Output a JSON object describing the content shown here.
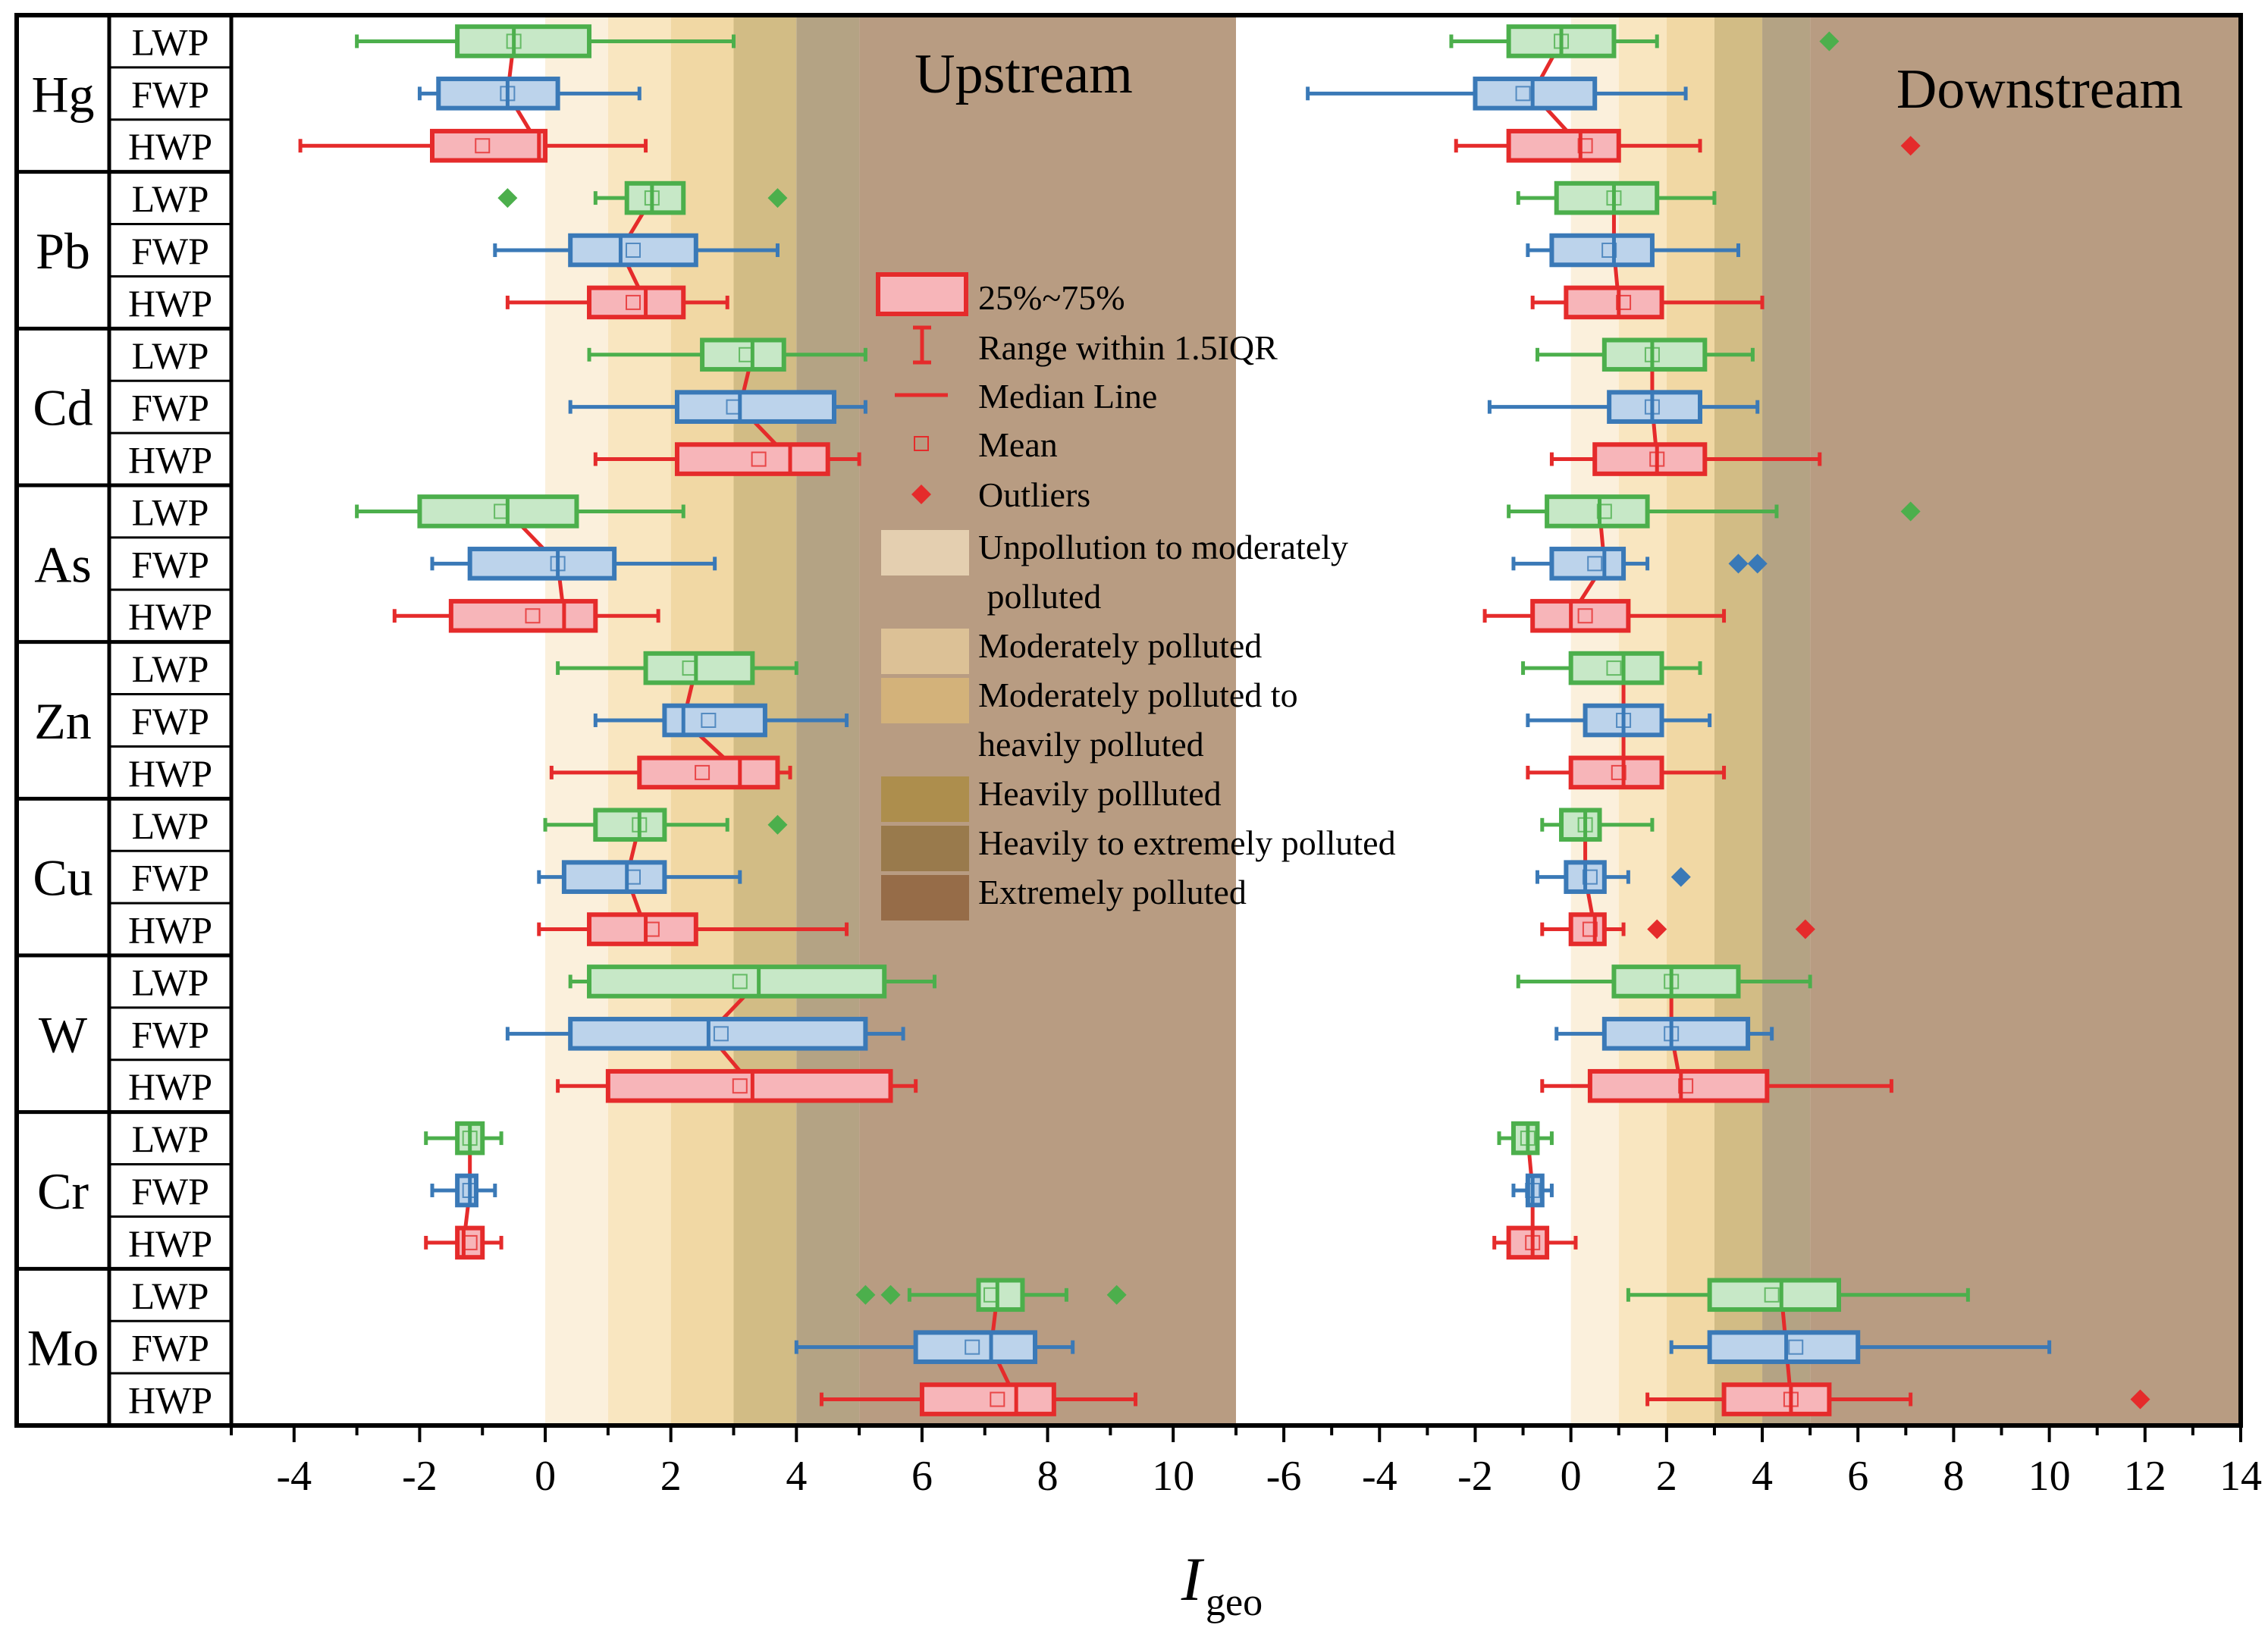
{
  "chart_data": {
    "type": "box",
    "xlabel_main": "I",
    "xlabel_sub": "geo",
    "panels": [
      {
        "key": "up",
        "label": "Upstream",
        "xlim": [
          -5,
          11
        ],
        "ticks": [
          "-4",
          "-2",
          "0",
          "2",
          "4",
          "6",
          "8",
          "10"
        ],
        "tick_values": [
          -4,
          -2,
          0,
          2,
          4,
          6,
          8,
          10
        ]
      },
      {
        "key": "down",
        "label": "Downstream",
        "xlim": [
          -7,
          14
        ],
        "ticks": [
          "-6",
          "-4",
          "-2",
          "0",
          "2",
          "4",
          "6",
          "8",
          "10",
          "12",
          "14"
        ],
        "tick_values": [
          -6,
          -4,
          -2,
          0,
          2,
          4,
          6,
          8,
          10,
          12,
          14
        ]
      }
    ],
    "pollution_bands": [
      {
        "from": 0,
        "to": 1,
        "color": "#fbf0dc"
      },
      {
        "from": 1,
        "to": 2,
        "color": "#f9e6c0"
      },
      {
        "from": 2,
        "to": 3,
        "color": "#f1d8a4"
      },
      {
        "from": 3,
        "to": 4,
        "color": "#d2bc85"
      },
      {
        "from": 4,
        "to": 5,
        "color": "#b4a384"
      },
      {
        "from": 5,
        "to": 99,
        "color": "#b89c82"
      }
    ],
    "series": [
      {
        "name": "LWP",
        "color": "#4caf4c",
        "fill": "#c7e8c7"
      },
      {
        "name": "FWP",
        "color": "#3a79b7",
        "fill": "#bcd3eb"
      },
      {
        "name": "HWP",
        "color": "#e52b2b",
        "fill": "#f7b5b9"
      }
    ],
    "elements": [
      {
        "name": "Hg",
        "groups": [
          {
            "series": "LWP",
            "up": {
              "whisker": [
                -3.0,
                3.0
              ],
              "q1": -1.4,
              "median": -0.5,
              "q3": 0.7,
              "mean": -0.5,
              "outliers": []
            },
            "down": {
              "whisker": [
                -2.5,
                1.8
              ],
              "q1": -1.3,
              "median": -0.2,
              "q3": 0.9,
              "mean": -0.2,
              "outliers": [
                5.4
              ]
            }
          },
          {
            "series": "FWP",
            "up": {
              "whisker": [
                -2.0,
                1.5
              ],
              "q1": -1.7,
              "median": -0.6,
              "q3": 0.2,
              "mean": -0.6,
              "outliers": []
            },
            "down": {
              "whisker": [
                -5.5,
                2.4
              ],
              "q1": -2.0,
              "median": -0.8,
              "q3": 0.5,
              "mean": -1.0,
              "outliers": []
            }
          },
          {
            "series": "HWP",
            "up": {
              "whisker": [
                -3.9,
                1.6
              ],
              "q1": -1.8,
              "median": -0.1,
              "q3": 0.0,
              "mean": -1.0,
              "outliers": []
            },
            "down": {
              "whisker": [
                -2.4,
                2.7
              ],
              "q1": -1.3,
              "median": 0.2,
              "q3": 1.0,
              "mean": 0.3,
              "outliers": [
                7.1
              ]
            }
          }
        ]
      },
      {
        "name": "Pb",
        "groups": [
          {
            "series": "LWP",
            "up": {
              "whisker": [
                0.8,
                2.2
              ],
              "q1": 1.3,
              "median": 1.7,
              "q3": 2.2,
              "mean": 1.7,
              "outliers": [
                -0.6,
                3.7
              ]
            },
            "down": {
              "whisker": [
                -1.1,
                3.0
              ],
              "q1": -0.3,
              "median": 0.9,
              "q3": 1.8,
              "mean": 0.9,
              "outliers": []
            }
          },
          {
            "series": "FWP",
            "up": {
              "whisker": [
                -0.8,
                3.7
              ],
              "q1": 0.4,
              "median": 1.2,
              "q3": 2.4,
              "mean": 1.4,
              "outliers": []
            },
            "down": {
              "whisker": [
                -0.9,
                3.5
              ],
              "q1": -0.4,
              "median": 0.9,
              "q3": 1.7,
              "mean": 0.8,
              "outliers": []
            }
          },
          {
            "series": "HWP",
            "up": {
              "whisker": [
                -0.6,
                2.9
              ],
              "q1": 0.7,
              "median": 1.6,
              "q3": 2.2,
              "mean": 1.4,
              "outliers": []
            },
            "down": {
              "whisker": [
                -0.8,
                4.0
              ],
              "q1": -0.1,
              "median": 1.0,
              "q3": 1.9,
              "mean": 1.1,
              "outliers": []
            }
          }
        ]
      },
      {
        "name": "Cd",
        "groups": [
          {
            "series": "LWP",
            "up": {
              "whisker": [
                0.7,
                5.1
              ],
              "q1": 2.5,
              "median": 3.3,
              "q3": 3.8,
              "mean": 3.2,
              "outliers": []
            },
            "down": {
              "whisker": [
                -0.7,
                3.8
              ],
              "q1": 0.7,
              "median": 1.7,
              "q3": 2.8,
              "mean": 1.7,
              "outliers": []
            }
          },
          {
            "series": "FWP",
            "up": {
              "whisker": [
                0.4,
                5.1
              ],
              "q1": 2.1,
              "median": 3.1,
              "q3": 4.6,
              "mean": 3.0,
              "outliers": []
            },
            "down": {
              "whisker": [
                -1.7,
                3.9
              ],
              "q1": 0.8,
              "median": 1.7,
              "q3": 2.7,
              "mean": 1.7,
              "outliers": []
            }
          },
          {
            "series": "HWP",
            "up": {
              "whisker": [
                0.8,
                5.0
              ],
              "q1": 2.1,
              "median": 3.9,
              "q3": 4.5,
              "mean": 3.4,
              "outliers": []
            },
            "down": {
              "whisker": [
                -0.4,
                5.2
              ],
              "q1": 0.5,
              "median": 1.8,
              "q3": 2.8,
              "mean": 1.8,
              "outliers": []
            }
          }
        ]
      },
      {
        "name": "As",
        "groups": [
          {
            "series": "LWP",
            "up": {
              "whisker": [
                -3.0,
                2.2
              ],
              "q1": -2.0,
              "median": -0.6,
              "q3": 0.5,
              "mean": -0.7,
              "outliers": []
            },
            "down": {
              "whisker": [
                -1.3,
                4.3
              ],
              "q1": -0.5,
              "median": 0.6,
              "q3": 1.6,
              "mean": 0.7,
              "outliers": [
                7.1
              ]
            }
          },
          {
            "series": "FWP",
            "up": {
              "whisker": [
                -1.8,
                2.7
              ],
              "q1": -1.2,
              "median": 0.2,
              "q3": 1.1,
              "mean": 0.2,
              "outliers": []
            },
            "down": {
              "whisker": [
                -1.2,
                1.6
              ],
              "q1": -0.4,
              "median": 0.7,
              "q3": 1.1,
              "mean": 0.5,
              "outliers": [
                3.5,
                3.9
              ]
            }
          },
          {
            "series": "HWP",
            "up": {
              "whisker": [
                -2.4,
                1.8
              ],
              "q1": -1.5,
              "median": 0.3,
              "q3": 0.8,
              "mean": -0.2,
              "outliers": []
            },
            "down": {
              "whisker": [
                -1.8,
                3.2
              ],
              "q1": -0.8,
              "median": 0.0,
              "q3": 1.2,
              "mean": 0.3,
              "outliers": []
            }
          }
        ]
      },
      {
        "name": "Zn",
        "groups": [
          {
            "series": "LWP",
            "up": {
              "whisker": [
                0.2,
                4.0
              ],
              "q1": 1.6,
              "median": 2.4,
              "q3": 3.3,
              "mean": 2.3,
              "outliers": []
            },
            "down": {
              "whisker": [
                -1.0,
                2.7
              ],
              "q1": 0.0,
              "median": 1.1,
              "q3": 1.9,
              "mean": 0.9,
              "outliers": []
            }
          },
          {
            "series": "FWP",
            "up": {
              "whisker": [
                0.8,
                4.8
              ],
              "q1": 1.9,
              "median": 2.2,
              "q3": 3.5,
              "mean": 2.6,
              "outliers": []
            },
            "down": {
              "whisker": [
                -0.9,
                2.9
              ],
              "q1": 0.3,
              "median": 1.1,
              "q3": 1.9,
              "mean": 1.1,
              "outliers": []
            }
          },
          {
            "series": "HWP",
            "up": {
              "whisker": [
                0.1,
                3.9
              ],
              "q1": 1.5,
              "median": 3.1,
              "q3": 3.7,
              "mean": 2.5,
              "outliers": []
            },
            "down": {
              "whisker": [
                -0.9,
                3.2
              ],
              "q1": 0.0,
              "median": 1.1,
              "q3": 1.9,
              "mean": 1.0,
              "outliers": []
            }
          }
        ]
      },
      {
        "name": "Cu",
        "groups": [
          {
            "series": "LWP",
            "up": {
              "whisker": [
                0.0,
                2.9
              ],
              "q1": 0.8,
              "median": 1.5,
              "q3": 1.9,
              "mean": 1.5,
              "outliers": [
                3.7
              ]
            },
            "down": {
              "whisker": [
                -0.6,
                1.7
              ],
              "q1": -0.2,
              "median": 0.3,
              "q3": 0.6,
              "mean": 0.3,
              "outliers": []
            }
          },
          {
            "series": "FWP",
            "up": {
              "whisker": [
                -0.1,
                3.1
              ],
              "q1": 0.3,
              "median": 1.3,
              "q3": 1.9,
              "mean": 1.4,
              "outliers": []
            },
            "down": {
              "whisker": [
                -0.7,
                1.2
              ],
              "q1": -0.1,
              "median": 0.3,
              "q3": 0.7,
              "mean": 0.4,
              "outliers": [
                2.3
              ]
            }
          },
          {
            "series": "HWP",
            "up": {
              "whisker": [
                -0.1,
                4.8
              ],
              "q1": 0.7,
              "median": 1.6,
              "q3": 2.4,
              "mean": 1.7,
              "outliers": []
            },
            "down": {
              "whisker": [
                -0.6,
                1.1
              ],
              "q1": 0.0,
              "median": 0.5,
              "q3": 0.7,
              "mean": 0.4,
              "outliers": [
                1.8,
                4.9
              ]
            }
          }
        ]
      },
      {
        "name": "W",
        "groups": [
          {
            "series": "LWP",
            "up": {
              "whisker": [
                0.4,
                6.2
              ],
              "q1": 0.7,
              "median": 3.4,
              "q3": 5.4,
              "mean": 3.1,
              "outliers": []
            },
            "down": {
              "whisker": [
                -1.1,
                5.0
              ],
              "q1": 0.9,
              "median": 2.1,
              "q3": 3.5,
              "mean": 2.1,
              "outliers": []
            }
          },
          {
            "series": "FWP",
            "up": {
              "whisker": [
                -0.6,
                5.7
              ],
              "q1": 0.4,
              "median": 2.6,
              "q3": 5.1,
              "mean": 2.8,
              "outliers": []
            },
            "down": {
              "whisker": [
                -0.3,
                4.2
              ],
              "q1": 0.7,
              "median": 2.1,
              "q3": 3.7,
              "mean": 2.1,
              "outliers": []
            }
          },
          {
            "series": "HWP",
            "up": {
              "whisker": [
                0.2,
                5.9
              ],
              "q1": 1.0,
              "median": 3.3,
              "q3": 5.5,
              "mean": 3.1,
              "outliers": []
            },
            "down": {
              "whisker": [
                -0.6,
                6.7
              ],
              "q1": 0.4,
              "median": 2.3,
              "q3": 4.1,
              "mean": 2.4,
              "outliers": []
            }
          }
        ]
      },
      {
        "name": "Cr",
        "groups": [
          {
            "series": "LWP",
            "up": {
              "whisker": [
                -1.9,
                -0.7
              ],
              "q1": -1.4,
              "median": -1.2,
              "q3": -1.0,
              "mean": -1.2,
              "outliers": []
            },
            "down": {
              "whisker": [
                -1.5,
                -0.4
              ],
              "q1": -1.2,
              "median": -0.9,
              "q3": -0.7,
              "mean": -0.9,
              "outliers": []
            }
          },
          {
            "series": "FWP",
            "up": {
              "whisker": [
                -1.8,
                -0.8
              ],
              "q1": -1.4,
              "median": -1.2,
              "q3": -1.1,
              "mean": -1.2,
              "outliers": []
            },
            "down": {
              "whisker": [
                -1.2,
                -0.4
              ],
              "q1": -0.9,
              "median": -0.8,
              "q3": -0.6,
              "mean": -0.8,
              "outliers": []
            }
          },
          {
            "series": "HWP",
            "up": {
              "whisker": [
                -1.9,
                -0.7
              ],
              "q1": -1.4,
              "median": -1.3,
              "q3": -1.0,
              "mean": -1.2,
              "outliers": []
            },
            "down": {
              "whisker": [
                -1.6,
                0.1
              ],
              "q1": -1.3,
              "median": -0.8,
              "q3": -0.5,
              "mean": -0.8,
              "outliers": []
            }
          }
        ]
      },
      {
        "name": "Mo",
        "groups": [
          {
            "series": "LWP",
            "up": {
              "whisker": [
                5.8,
                8.3
              ],
              "q1": 6.9,
              "median": 7.2,
              "q3": 7.6,
              "mean": 7.1,
              "outliers": [
                5.1,
                5.5,
                9.1
              ]
            },
            "down": {
              "whisker": [
                1.2,
                8.3
              ],
              "q1": 2.9,
              "median": 4.4,
              "q3": 5.6,
              "mean": 4.2,
              "outliers": []
            }
          },
          {
            "series": "FWP",
            "up": {
              "whisker": [
                4.0,
                8.4
              ],
              "q1": 5.9,
              "median": 7.1,
              "q3": 7.8,
              "mean": 6.8,
              "outliers": []
            },
            "down": {
              "whisker": [
                2.1,
                10.0
              ],
              "q1": 2.9,
              "median": 4.5,
              "q3": 6.0,
              "mean": 4.7,
              "outliers": []
            }
          },
          {
            "series": "HWP",
            "up": {
              "whisker": [
                4.4,
                9.4
              ],
              "q1": 6.0,
              "median": 7.5,
              "q3": 8.1,
              "mean": 7.2,
              "outliers": []
            },
            "down": {
              "whisker": [
                1.6,
                7.1
              ],
              "q1": 3.2,
              "median": 4.6,
              "q3": 5.4,
              "mean": 4.6,
              "outliers": [
                11.9
              ]
            }
          }
        ]
      }
    ],
    "legend": {
      "box": "25%~75%",
      "range": "Range within 1.5IQR",
      "median": "Median Line",
      "mean": "Mean",
      "outliers": "Outliers",
      "classes": [
        {
          "lines": [
            "Unpollution to moderately",
            " polluted"
          ],
          "color": "#e4cfb0"
        },
        {
          "lines": [
            "Moderately polluted"
          ],
          "color": "#dcc196"
        },
        {
          "lines": [
            "Moderately polluted to",
            "heavily polluted"
          ],
          "color": "#d3b27a"
        },
        {
          "lines": [
            "Heavily pollluted"
          ],
          "color": "#ad8e4d"
        },
        {
          "lines": [
            "Heavily to extremely polluted"
          ],
          "color": "#997a4c"
        },
        {
          "lines": [
            "Extremely polluted"
          ],
          "color": "#966c48"
        }
      ]
    }
  }
}
